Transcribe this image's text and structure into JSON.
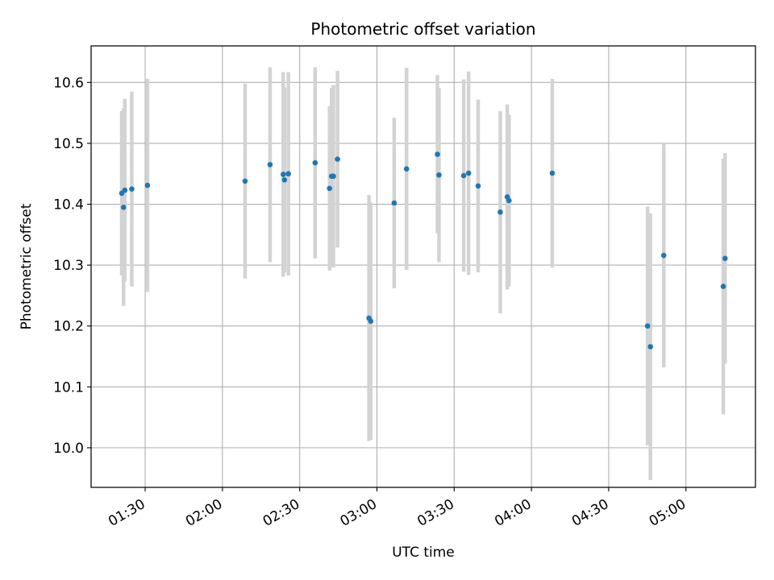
{
  "chart_data": {
    "type": "scatter",
    "title": "Photometric offset variation",
    "xlabel": "UTC time",
    "ylabel": "Photometric offset",
    "x_unit": "UTC minutes",
    "xlim": [
      69,
      327
    ],
    "ylim": [
      9.935,
      10.66
    ],
    "xticks": [
      {
        "value": 90,
        "label": "01:30"
      },
      {
        "value": 120,
        "label": "02:00"
      },
      {
        "value": 150,
        "label": "02:30"
      },
      {
        "value": 180,
        "label": "03:00"
      },
      {
        "value": 210,
        "label": "03:30"
      },
      {
        "value": 240,
        "label": "04:00"
      },
      {
        "value": 270,
        "label": "04:30"
      },
      {
        "value": 300,
        "label": "05:00"
      }
    ],
    "yticks": [
      {
        "value": 10.0,
        "label": "10.0"
      },
      {
        "value": 10.1,
        "label": "10.1"
      },
      {
        "value": 10.2,
        "label": "10.2"
      },
      {
        "value": 10.3,
        "label": "10.3"
      },
      {
        "value": 10.4,
        "label": "10.4"
      },
      {
        "value": 10.5,
        "label": "10.5"
      },
      {
        "value": 10.6,
        "label": "10.6"
      }
    ],
    "grid": true,
    "point_color": "#1f77b4",
    "errorbar_color": "#d3d3d3",
    "points": [
      {
        "x": 80.9,
        "y": 10.418,
        "lo": 10.283,
        "hi": 10.553
      },
      {
        "x": 81.6,
        "y": 10.395,
        "lo": 10.233,
        "hi": 10.557
      },
      {
        "x": 82.1,
        "y": 10.423,
        "lo": 10.273,
        "hi": 10.573
      },
      {
        "x": 84.8,
        "y": 10.425,
        "lo": 10.265,
        "hi": 10.585
      },
      {
        "x": 90.9,
        "y": 10.431,
        "lo": 10.256,
        "hi": 10.606
      },
      {
        "x": 128.8,
        "y": 10.438,
        "lo": 10.278,
        "hi": 10.598
      },
      {
        "x": 138.5,
        "y": 10.465,
        "lo": 10.305,
        "hi": 10.625
      },
      {
        "x": 143.6,
        "y": 10.449,
        "lo": 10.281,
        "hi": 10.617
      },
      {
        "x": 144.1,
        "y": 10.44,
        "lo": 10.288,
        "hi": 10.592
      },
      {
        "x": 145.6,
        "y": 10.45,
        "lo": 10.283,
        "hi": 10.617
      },
      {
        "x": 156.0,
        "y": 10.468,
        "lo": 10.311,
        "hi": 10.625
      },
      {
        "x": 161.6,
        "y": 10.426,
        "lo": 10.291,
        "hi": 10.561
      },
      {
        "x": 162.4,
        "y": 10.446,
        "lo": 10.301,
        "hi": 10.591
      },
      {
        "x": 163.1,
        "y": 10.446,
        "lo": 10.296,
        "hi": 10.596
      },
      {
        "x": 164.7,
        "y": 10.474,
        "lo": 10.329,
        "hi": 10.619
      },
      {
        "x": 176.9,
        "y": 10.213,
        "lo": 10.011,
        "hi": 10.415
      },
      {
        "x": 177.6,
        "y": 10.208,
        "lo": 10.013,
        "hi": 10.403
      },
      {
        "x": 186.7,
        "y": 10.402,
        "lo": 10.262,
        "hi": 10.542
      },
      {
        "x": 191.5,
        "y": 10.458,
        "lo": 10.292,
        "hi": 10.624
      },
      {
        "x": 203.5,
        "y": 10.482,
        "lo": 10.352,
        "hi": 10.612
      },
      {
        "x": 204.1,
        "y": 10.448,
        "lo": 10.305,
        "hi": 10.591
      },
      {
        "x": 213.7,
        "y": 10.447,
        "lo": 10.289,
        "hi": 10.605
      },
      {
        "x": 215.6,
        "y": 10.451,
        "lo": 10.284,
        "hi": 10.618
      },
      {
        "x": 219.3,
        "y": 10.43,
        "lo": 10.288,
        "hi": 10.572
      },
      {
        "x": 227.9,
        "y": 10.387,
        "lo": 10.221,
        "hi": 10.553
      },
      {
        "x": 230.6,
        "y": 10.412,
        "lo": 10.26,
        "hi": 10.564
      },
      {
        "x": 231.3,
        "y": 10.406,
        "lo": 10.265,
        "hi": 10.547
      },
      {
        "x": 248.1,
        "y": 10.451,
        "lo": 10.296,
        "hi": 10.606
      },
      {
        "x": 285.1,
        "y": 10.2,
        "lo": 10.004,
        "hi": 10.396
      },
      {
        "x": 286.2,
        "y": 10.166,
        "lo": 9.947,
        "hi": 10.385
      },
      {
        "x": 291.4,
        "y": 10.316,
        "lo": 10.132,
        "hi": 10.5
      },
      {
        "x": 314.5,
        "y": 10.265,
        "lo": 10.055,
        "hi": 10.475
      },
      {
        "x": 315.2,
        "y": 10.311,
        "lo": 10.138,
        "hi": 10.484
      }
    ]
  }
}
